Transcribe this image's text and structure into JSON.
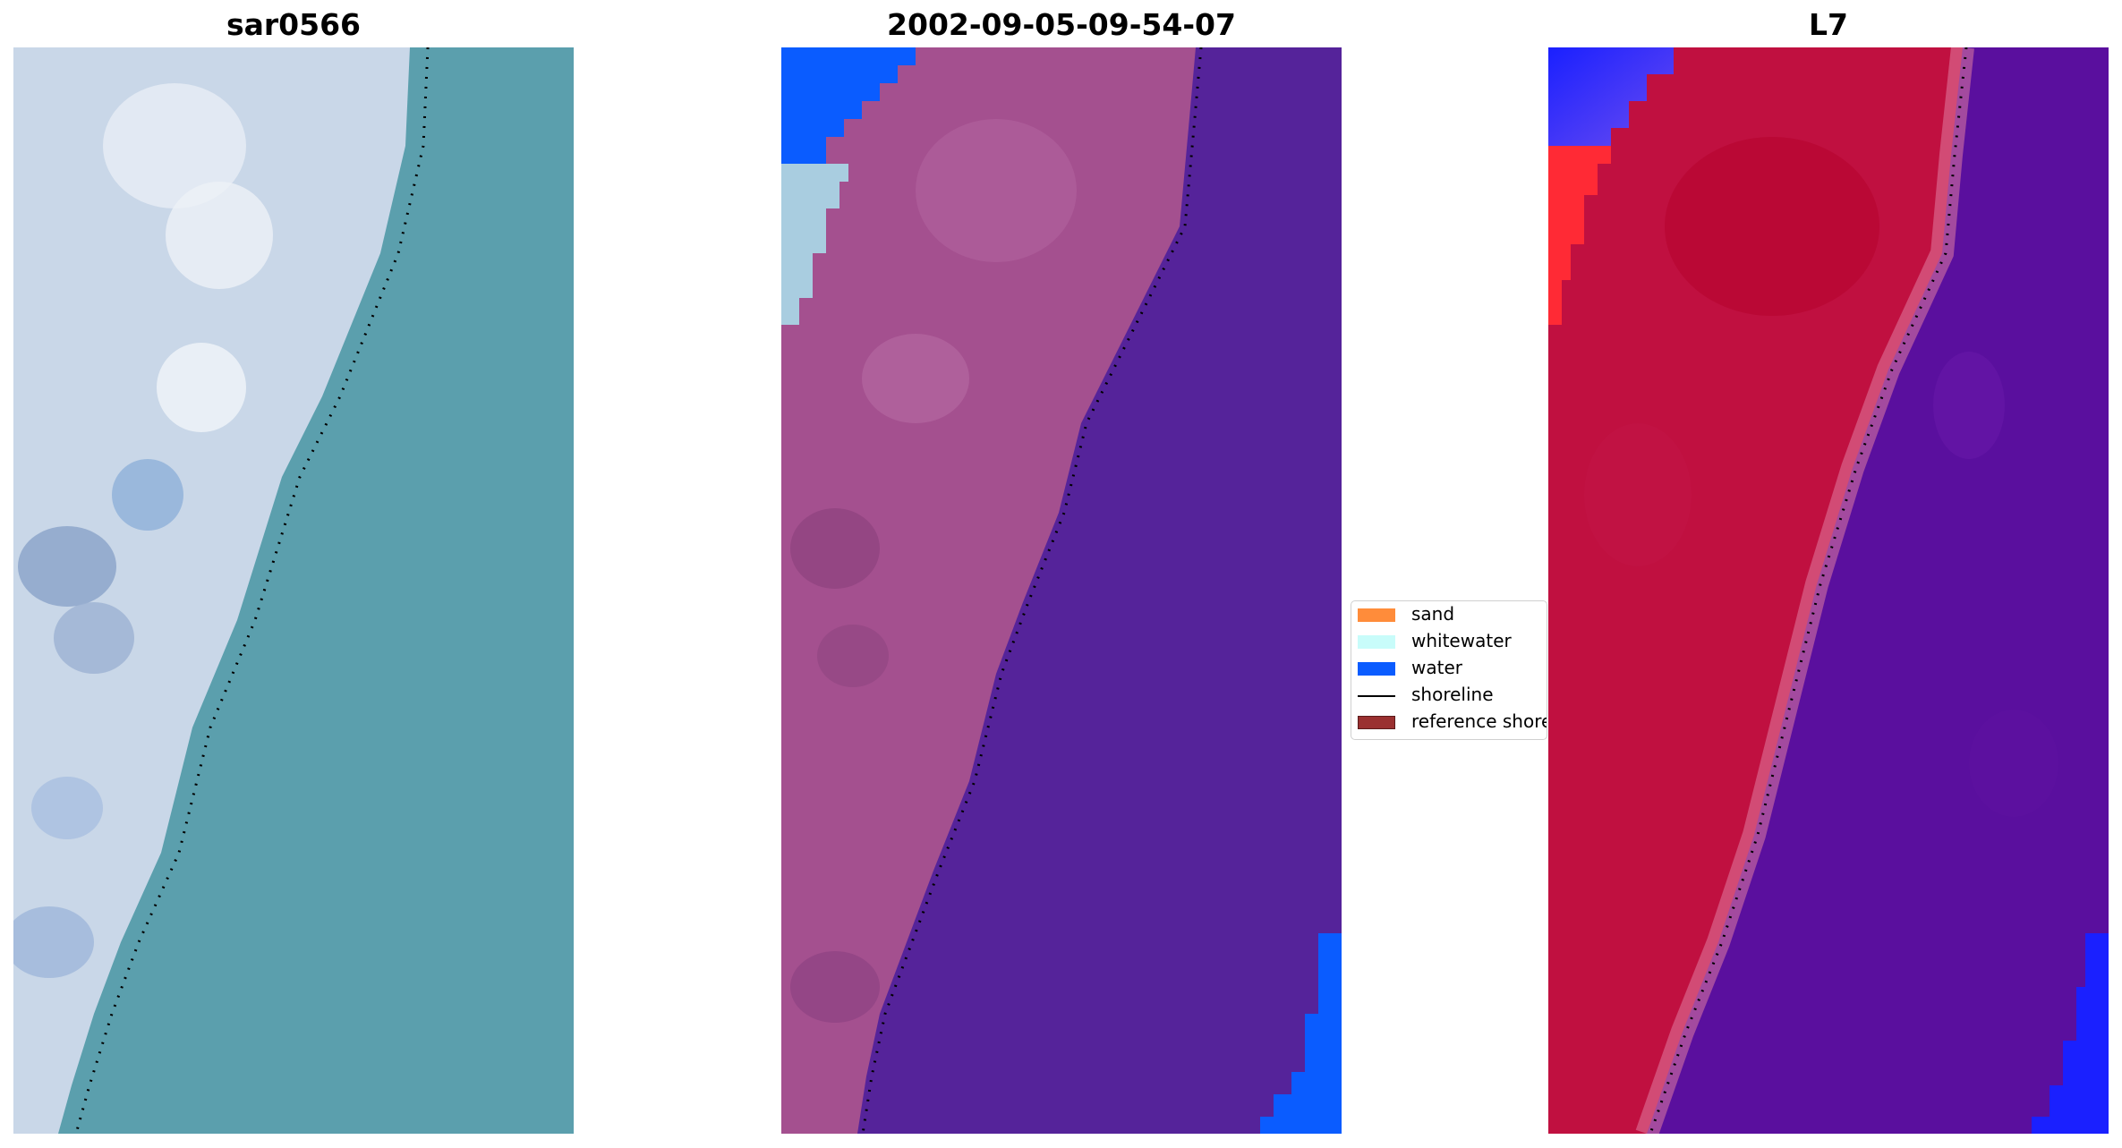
{
  "panels": [
    {
      "title": "sar0566"
    },
    {
      "title": "2002-09-05-09-54-07"
    },
    {
      "title": "L7"
    }
  ],
  "legend": {
    "items": [
      {
        "label": "sand",
        "color": "#ff8c3a",
        "kind": "patch"
      },
      {
        "label": "whitewater",
        "color": "#c8fcfa",
        "kind": "patch"
      },
      {
        "label": "water",
        "color": "#0a5cff",
        "kind": "patch"
      },
      {
        "label": "shoreline",
        "color": "#000000",
        "kind": "line"
      },
      {
        "label": "reference shoreline",
        "color": "#9a3030",
        "kind": "patch"
      }
    ]
  },
  "colors": {
    "rgb_water": "#5b9fad",
    "rgb_land": "#c9d7e8",
    "class_land": "#a4508f",
    "class_water": "#55239a",
    "class_blue": "#0a5cff",
    "class_whitewater": "#a9cde0",
    "mndwi_land": "#c01040",
    "mndwi_water": "#5a0f9e",
    "mndwi_blue": "#1a20ff"
  }
}
